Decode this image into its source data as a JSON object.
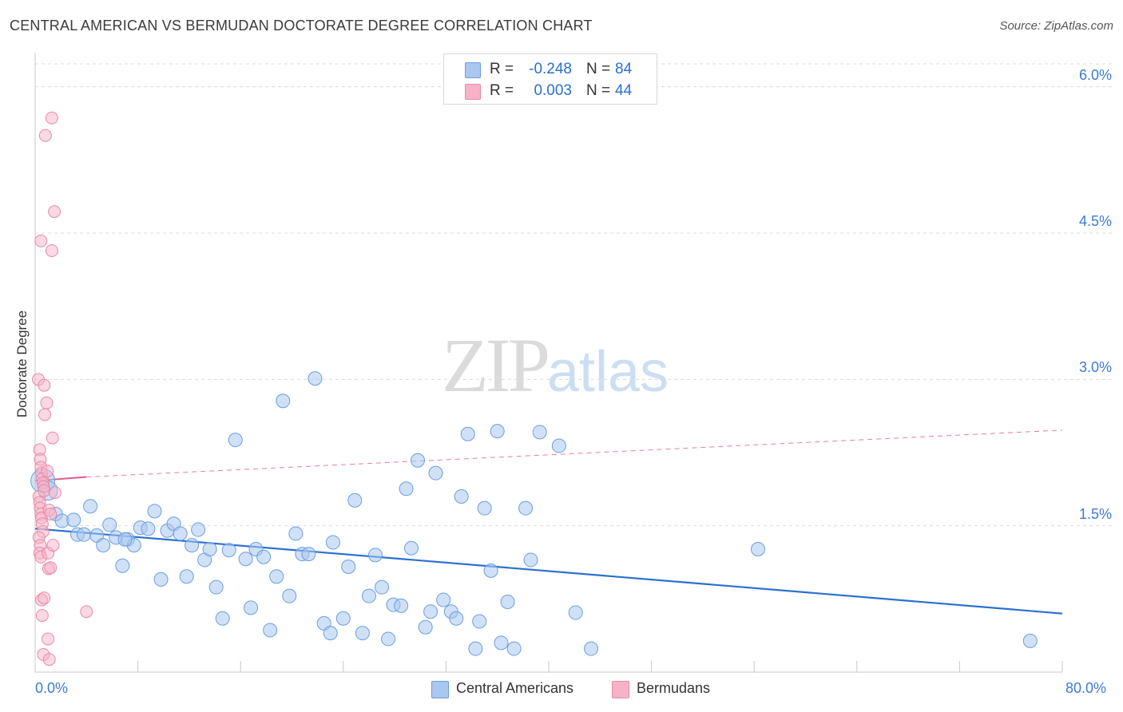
{
  "header": {
    "title": "CENTRAL AMERICAN VS BERMUDAN DOCTORATE DEGREE CORRELATION CHART",
    "source": "Source: ZipAtlas.com"
  },
  "watermark": {
    "zip": "ZIP",
    "atlas": "atlas"
  },
  "legend": {
    "rows": [
      {
        "r_label": "R =",
        "r_value": "-0.248",
        "n_label": "N =",
        "n_value": "84",
        "color": "#a9c8f0"
      },
      {
        "r_label": "R =",
        "r_value": "0.003",
        "n_label": "N =",
        "n_value": "44",
        "color": "#f6b3c8"
      }
    ]
  },
  "bottom_legend": {
    "items": [
      {
        "label": "Central Americans",
        "color": "#a9c8f0"
      },
      {
        "label": "Bermudans",
        "color": "#f6b3c8"
      }
    ]
  },
  "colors": {
    "blue_fill": "#a9c8f0",
    "blue_stroke": "#6a9ee0",
    "blue_line": "#2a6fd1",
    "pink_fill": "#f6b3c8",
    "pink_stroke": "#e889a8",
    "pink_line": "#e05d8a",
    "grid": "#dcdcdc",
    "tick_text": "#3d7ad6"
  },
  "chart_data": {
    "type": "scatter",
    "title": "CENTRAL AMERICAN VS BERMUDAN DOCTORATE DEGREE CORRELATION CHART",
    "xlabel": "",
    "ylabel": "Doctorate Degree",
    "xlim": [
      0,
      80
    ],
    "ylim": [
      0,
      6.3
    ],
    "x_tick_labels": [
      "0.0%",
      "80.0%"
    ],
    "y_ticks": [
      1.5,
      3.0,
      4.5,
      6.0
    ],
    "y_tick_labels": [
      "1.5%",
      "3.0%",
      "4.5%",
      "6.0%"
    ],
    "grid": "horizontal dashed",
    "legend_position": "top-center",
    "series": [
      {
        "name": "Central Americans",
        "r": -0.248,
        "n": 84,
        "trend": {
          "x": [
            0,
            80
          ],
          "y": [
            1.47,
            0.6
          ],
          "style": "solid"
        },
        "points": [
          [
            0.6,
            1.96
          ],
          [
            1.0,
            1.86
          ],
          [
            1.6,
            1.62
          ],
          [
            2.1,
            1.55
          ],
          [
            3.0,
            1.56
          ],
          [
            3.3,
            1.41
          ],
          [
            3.8,
            1.41
          ],
          [
            4.3,
            1.7
          ],
          [
            4.8,
            1.4
          ],
          [
            5.3,
            1.3
          ],
          [
            5.8,
            1.51
          ],
          [
            6.3,
            1.38
          ],
          [
            6.8,
            1.09
          ],
          [
            7.2,
            1.36
          ],
          [
            7.7,
            1.3
          ],
          [
            8.2,
            1.48
          ],
          [
            8.8,
            1.47
          ],
          [
            9.3,
            1.65
          ],
          [
            9.8,
            0.95
          ],
          [
            10.3,
            1.45
          ],
          [
            10.8,
            1.52
          ],
          [
            11.3,
            1.42
          ],
          [
            11.8,
            0.98
          ],
          [
            12.2,
            1.3
          ],
          [
            12.7,
            1.46
          ],
          [
            13.2,
            1.15
          ],
          [
            13.6,
            1.26
          ],
          [
            14.1,
            0.87
          ],
          [
            14.6,
            0.55
          ],
          [
            15.1,
            1.25
          ],
          [
            15.6,
            2.38
          ],
          [
            16.4,
            1.16
          ],
          [
            16.8,
            0.66
          ],
          [
            17.2,
            1.26
          ],
          [
            17.8,
            1.18
          ],
          [
            18.3,
            0.43
          ],
          [
            18.8,
            0.98
          ],
          [
            19.3,
            2.78
          ],
          [
            19.8,
            0.78
          ],
          [
            20.3,
            1.42
          ],
          [
            20.8,
            1.21
          ],
          [
            21.3,
            1.21
          ],
          [
            21.8,
            3.01
          ],
          [
            22.5,
            0.5
          ],
          [
            23.0,
            0.4
          ],
          [
            23.2,
            1.33
          ],
          [
            24.0,
            0.55
          ],
          [
            24.4,
            1.08
          ],
          [
            24.9,
            1.76
          ],
          [
            25.5,
            0.4
          ],
          [
            26.0,
            0.78
          ],
          [
            26.5,
            1.2
          ],
          [
            27.0,
            0.87
          ],
          [
            27.5,
            0.34
          ],
          [
            27.9,
            0.69
          ],
          [
            28.5,
            0.68
          ],
          [
            28.9,
            1.88
          ],
          [
            29.3,
            1.27
          ],
          [
            29.8,
            2.17
          ],
          [
            30.4,
            0.46
          ],
          [
            30.8,
            0.62
          ],
          [
            31.2,
            2.04
          ],
          [
            31.8,
            0.74
          ],
          [
            32.4,
            0.62
          ],
          [
            32.8,
            0.55
          ],
          [
            33.2,
            1.8
          ],
          [
            33.7,
            2.44
          ],
          [
            34.3,
            0.24
          ],
          [
            34.6,
            0.52
          ],
          [
            35.0,
            1.68
          ],
          [
            35.5,
            1.04
          ],
          [
            36.0,
            2.47
          ],
          [
            36.3,
            0.3
          ],
          [
            36.8,
            0.72
          ],
          [
            37.3,
            0.24
          ],
          [
            38.2,
            1.68
          ],
          [
            38.6,
            1.15
          ],
          [
            39.3,
            2.46
          ],
          [
            40.8,
            2.32
          ],
          [
            42.1,
            0.61
          ],
          [
            43.3,
            0.24
          ],
          [
            56.3,
            1.26
          ],
          [
            77.5,
            0.32
          ],
          [
            7.0,
            1.36
          ]
        ]
      },
      {
        "name": "Bermudans",
        "r": 0.003,
        "n": 44,
        "trend": {
          "x": [
            0,
            4
          ],
          "y": [
            1.96,
            2.0
          ],
          "style": "solid",
          "extended": {
            "x": [
              4,
              80
            ],
            "y": [
              2.0,
              2.48
            ],
            "style": "dashed"
          }
        },
        "points": [
          [
            0.25,
            3.0
          ],
          [
            0.35,
            2.28
          ],
          [
            0.4,
            2.18
          ],
          [
            0.45,
            2.1
          ],
          [
            0.5,
            2.04
          ],
          [
            0.55,
            1.98
          ],
          [
            0.6,
            1.94
          ],
          [
            0.65,
            1.9
          ],
          [
            0.7,
            1.86
          ],
          [
            0.3,
            1.8
          ],
          [
            0.35,
            1.74
          ],
          [
            0.4,
            1.68
          ],
          [
            0.45,
            1.62
          ],
          [
            0.5,
            1.58
          ],
          [
            0.55,
            1.52
          ],
          [
            0.6,
            1.44
          ],
          [
            0.3,
            1.38
          ],
          [
            0.4,
            1.3
          ],
          [
            0.35,
            1.22
          ],
          [
            0.45,
            1.18
          ],
          [
            0.5,
            0.74
          ],
          [
            0.55,
            0.58
          ],
          [
            0.65,
            0.18
          ],
          [
            0.8,
            5.5
          ],
          [
            1.3,
            5.68
          ],
          [
            1.5,
            4.72
          ],
          [
            0.45,
            4.42
          ],
          [
            1.3,
            4.32
          ],
          [
            0.7,
            2.94
          ],
          [
            0.9,
            2.76
          ],
          [
            0.75,
            2.64
          ],
          [
            1.35,
            2.4
          ],
          [
            0.95,
            2.06
          ],
          [
            1.1,
            1.66
          ],
          [
            1.55,
            1.84
          ],
          [
            1.2,
            1.62
          ],
          [
            1.0,
            1.22
          ],
          [
            1.4,
            1.3
          ],
          [
            1.05,
            1.06
          ],
          [
            1.2,
            1.07
          ],
          [
            0.7,
            0.76
          ],
          [
            4.0,
            0.62
          ],
          [
            1.0,
            0.34
          ],
          [
            1.1,
            0.13
          ]
        ]
      }
    ]
  }
}
